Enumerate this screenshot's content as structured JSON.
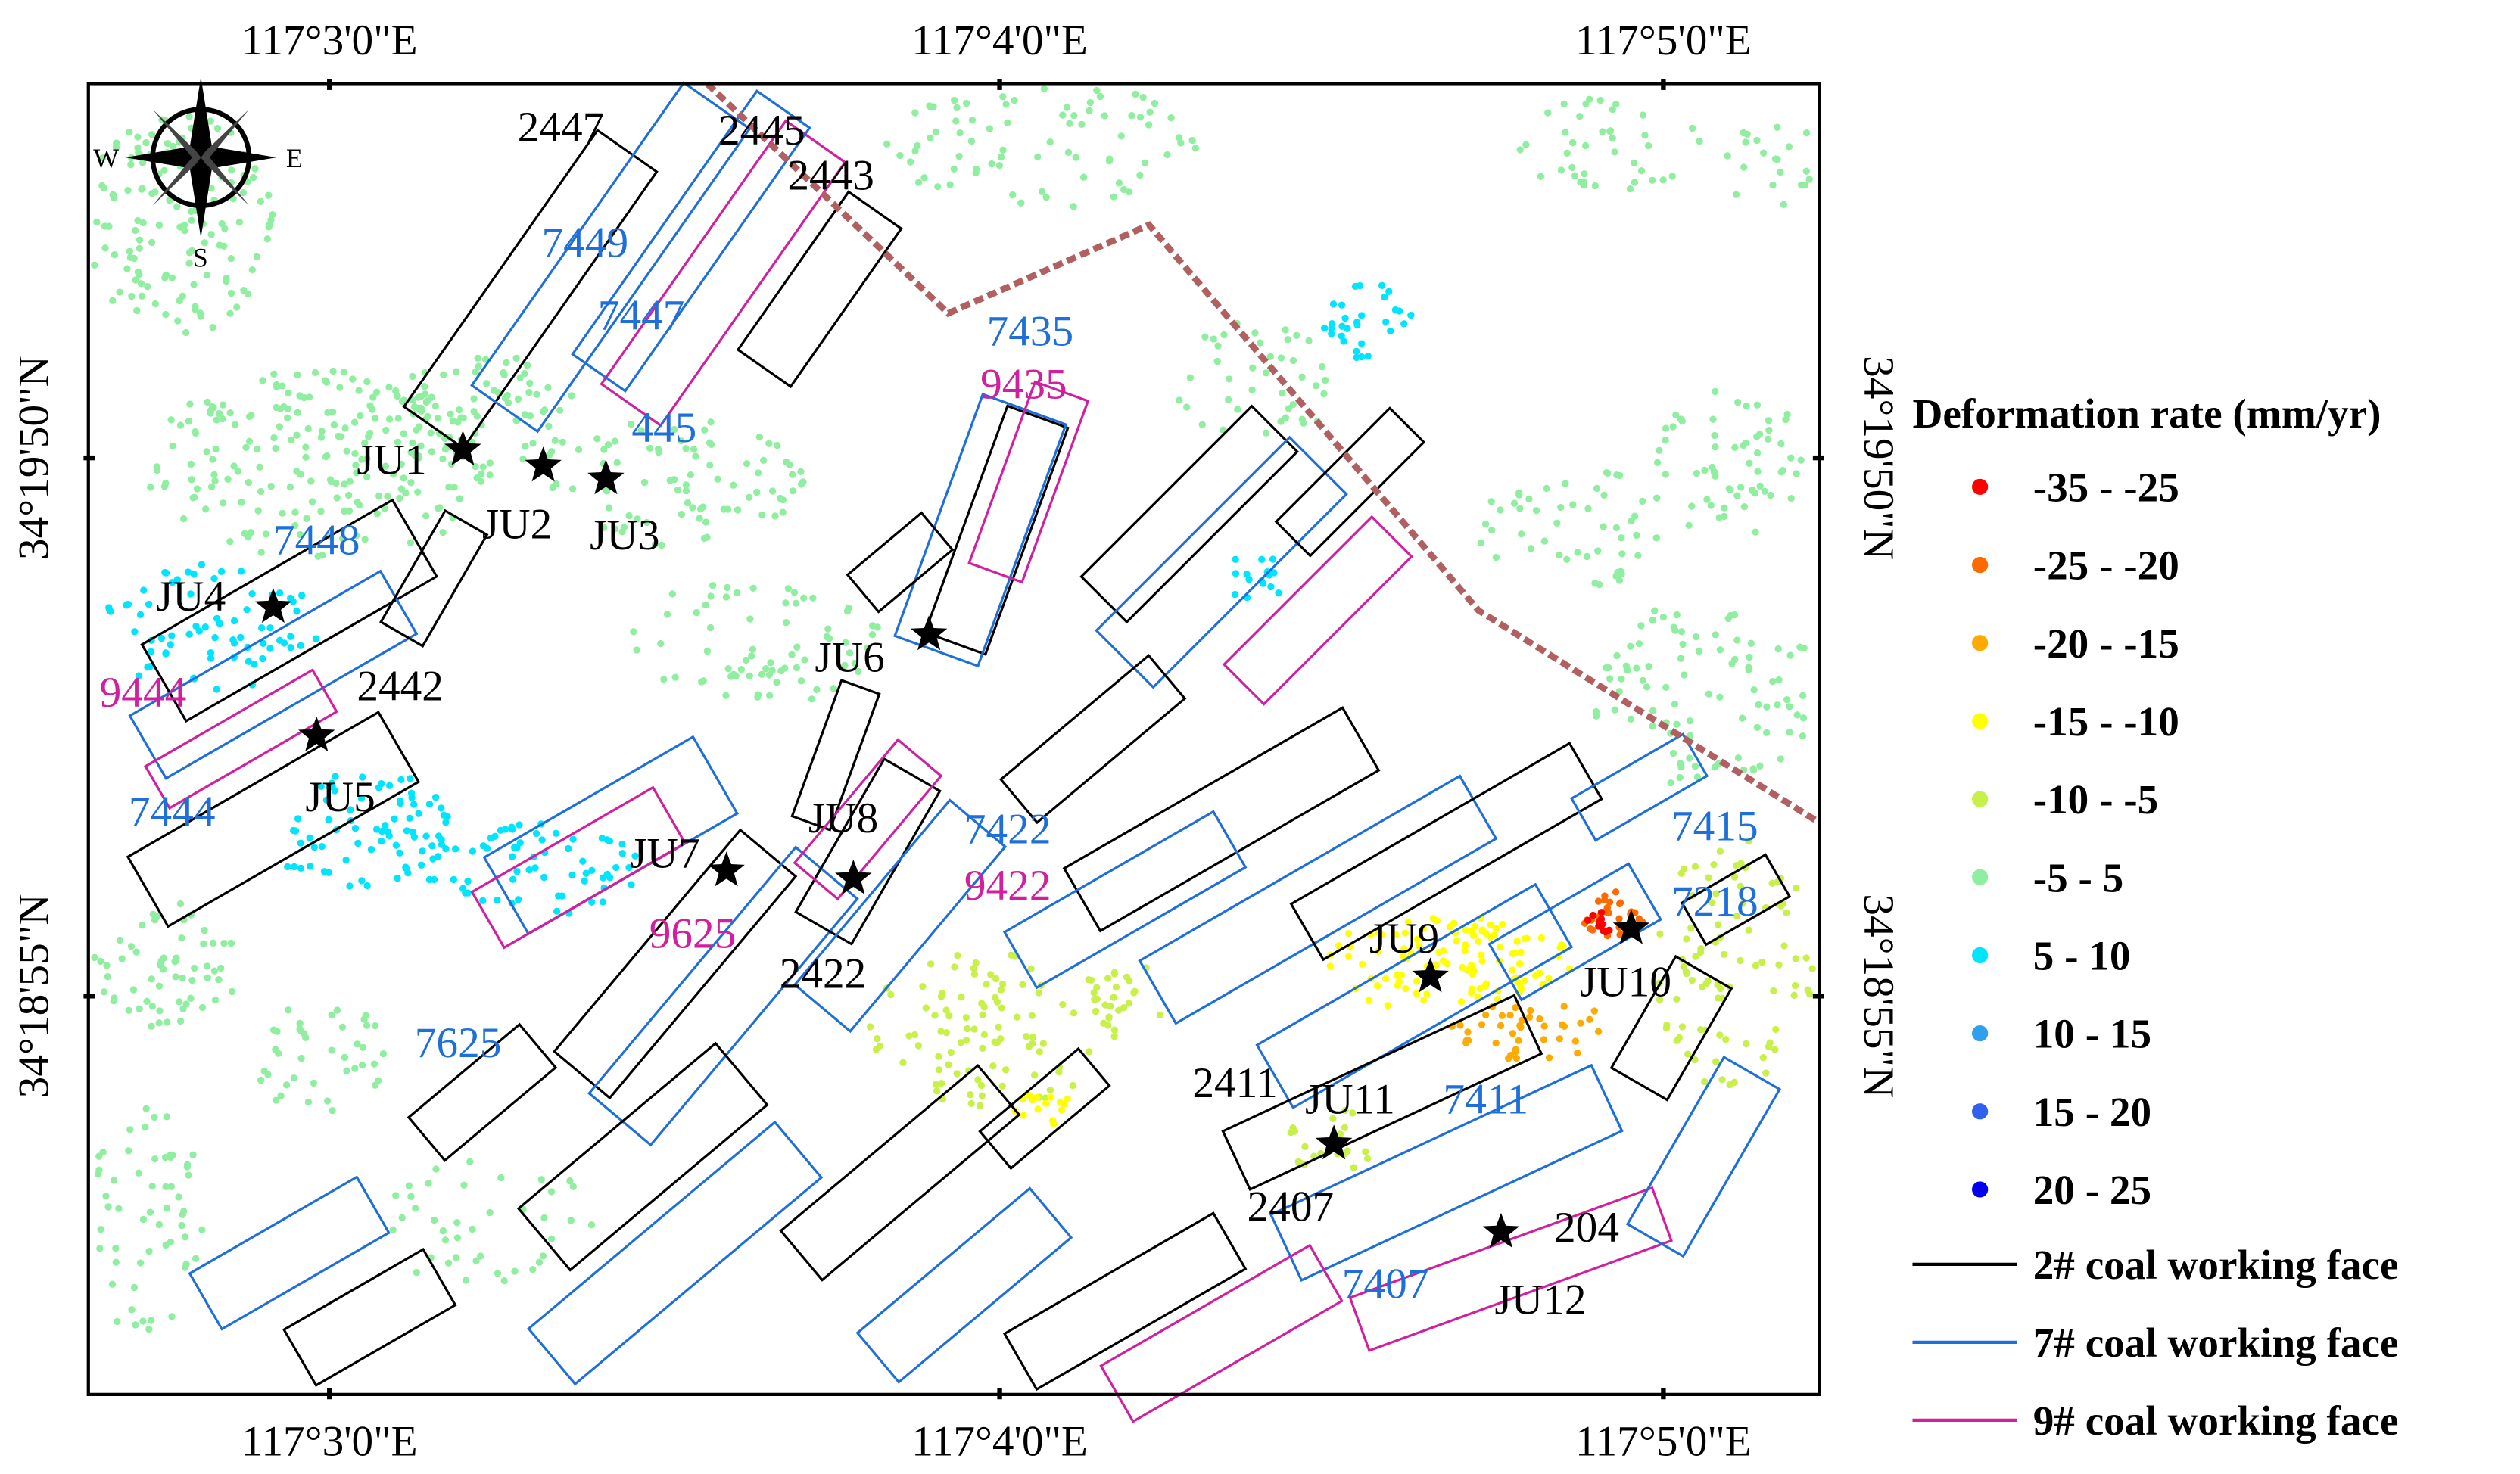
{
  "map": {
    "x_labels_top": [
      "117°3'0\"E",
      "117°4'0\"E",
      "117°5'0\"E"
    ],
    "x_labels_bottom": [
      "117°3'0\"E",
      "117°4'0\"E",
      "117°5'0\"E"
    ],
    "y_labels_left": [
      "34°19'50\"N",
      "34°18'55\"N"
    ],
    "y_labels_right": [
      "34°19'50\"N",
      "34°18'55\"N"
    ],
    "compass": {
      "west": "W",
      "east": "E",
      "south": "S"
    },
    "legend": {
      "title": "Deformation rate (mm/yr)",
      "classes": [
        {
          "label": "-35 - -25",
          "color": "#ff0000"
        },
        {
          "label": "-25 - -20",
          "color": "#ff6a00"
        },
        {
          "label": "-20 - -15",
          "color": "#ffaa00"
        },
        {
          "label": "-15 - -10",
          "color": "#ffff00"
        },
        {
          "label": "-10 - -5",
          "color": "#c8f04a"
        },
        {
          "label": "-5 - 5",
          "color": "#90eea0"
        },
        {
          "label": "5 - 10",
          "color": "#00e5ff"
        },
        {
          "label": "10 - 15",
          "color": "#30a0ee"
        },
        {
          "label": "15 - 20",
          "color": "#3060ee"
        },
        {
          "label": "20 - 25",
          "color": "#0000ee"
        }
      ],
      "lines": [
        {
          "label": "2# coal working face",
          "color": "#000000"
        },
        {
          "label": "7# coal working face",
          "color": "#1e6fd9"
        },
        {
          "label": "9# coal working face",
          "color": "#d020a0"
        }
      ]
    },
    "labels": [
      {
        "text": "2447",
        "color": "#000000"
      },
      {
        "text": "2445",
        "color": "#000000"
      },
      {
        "text": "2443",
        "color": "#000000"
      },
      {
        "text": "7449",
        "color": "#1e6fd9"
      },
      {
        "text": "7447",
        "color": "#1e6fd9"
      },
      {
        "text": "445",
        "color": "#1e6fd9"
      },
      {
        "text": "JU1",
        "color": "#000000"
      },
      {
        "text": "JU2",
        "color": "#000000"
      },
      {
        "text": "JU3",
        "color": "#000000"
      },
      {
        "text": "7448",
        "color": "#1e6fd9"
      },
      {
        "text": "JU4",
        "color": "#000000"
      },
      {
        "text": "9444",
        "color": "#d020a0"
      },
      {
        "text": "2442",
        "color": "#000000"
      },
      {
        "text": "JU5",
        "color": "#000000"
      },
      {
        "text": "7444",
        "color": "#1e6fd9"
      },
      {
        "text": "7435",
        "color": "#1e6fd9"
      },
      {
        "text": "9435",
        "color": "#d020a0"
      },
      {
        "text": "JU6",
        "color": "#000000"
      },
      {
        "text": "JU8",
        "color": "#000000"
      },
      {
        "text": "7422",
        "color": "#1e6fd9"
      },
      {
        "text": "JU7",
        "color": "#000000"
      },
      {
        "text": "9422",
        "color": "#d020a0"
      },
      {
        "text": "9625",
        "color": "#d020a0"
      },
      {
        "text": "2422",
        "color": "#000000"
      },
      {
        "text": "7625",
        "color": "#1e6fd9"
      },
      {
        "text": "JU9",
        "color": "#000000"
      },
      {
        "text": "7415",
        "color": "#1e6fd9"
      },
      {
        "text": "7218",
        "color": "#1e6fd9"
      },
      {
        "text": "JU10",
        "color": "#000000"
      },
      {
        "text": "2411",
        "color": "#000000"
      },
      {
        "text": "JU11",
        "color": "#000000"
      },
      {
        "text": "7411",
        "color": "#1e6fd9"
      },
      {
        "text": "2407",
        "color": "#000000"
      },
      {
        "text": "204",
        "color": "#000000"
      },
      {
        "text": "7407",
        "color": "#1e6fd9"
      },
      {
        "text": "JU12",
        "color": "#000000"
      }
    ]
  }
}
